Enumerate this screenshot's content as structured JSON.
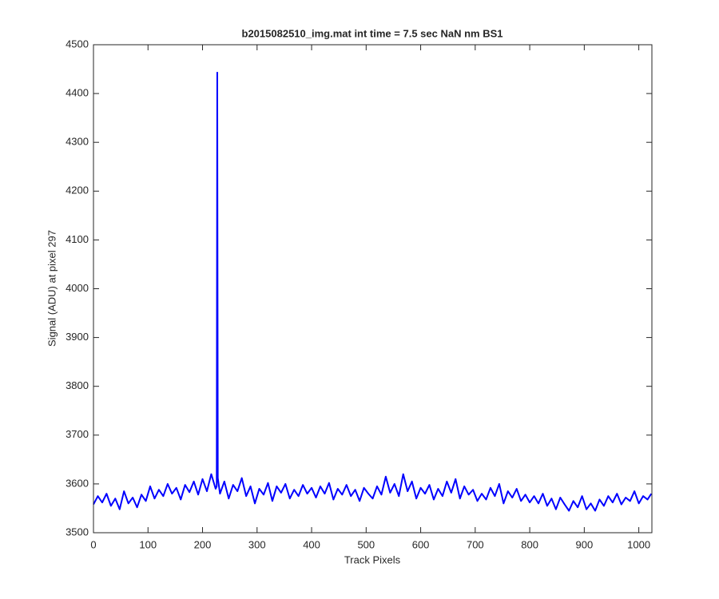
{
  "chart_data": {
    "type": "line",
    "title": "b2015082510_img.mat int time = 7.5 sec  NaN nm BS1",
    "x_label": "Track Pixels",
    "y_label": "Signal (ADU) at pixel 297",
    "xlim": [
      0,
      1024
    ],
    "ylim": [
      3500,
      4500
    ],
    "xticks": [
      0,
      100,
      200,
      300,
      400,
      500,
      600,
      700,
      800,
      900,
      1000
    ],
    "yticks": [
      3500,
      3600,
      3700,
      3800,
      3900,
      4000,
      4100,
      4200,
      4300,
      4400,
      4500
    ],
    "grid": false,
    "x": [
      0,
      8,
      16,
      24,
      32,
      40,
      48,
      56,
      64,
      72,
      80,
      88,
      96,
      104,
      112,
      120,
      128,
      136,
      144,
      152,
      160,
      168,
      176,
      184,
      192,
      200,
      208,
      216,
      224,
      226,
      227,
      228,
      232,
      240,
      248,
      256,
      264,
      272,
      280,
      288,
      296,
      304,
      312,
      320,
      328,
      336,
      344,
      352,
      360,
      368,
      376,
      384,
      392,
      400,
      408,
      416,
      424,
      432,
      440,
      448,
      456,
      464,
      472,
      480,
      488,
      496,
      504,
      512,
      520,
      528,
      536,
      544,
      552,
      560,
      568,
      576,
      584,
      592,
      600,
      608,
      616,
      624,
      632,
      640,
      648,
      656,
      664,
      672,
      680,
      688,
      696,
      704,
      712,
      720,
      728,
      736,
      744,
      752,
      760,
      768,
      776,
      784,
      792,
      800,
      808,
      816,
      824,
      832,
      840,
      848,
      856,
      864,
      872,
      880,
      888,
      896,
      904,
      912,
      920,
      928,
      936,
      944,
      952,
      960,
      968,
      976,
      984,
      992,
      1000,
      1008,
      1016,
      1023
    ],
    "series": [
      {
        "name": "signal",
        "color": "#0000ff",
        "values": [
          3558,
          3575,
          3562,
          3580,
          3555,
          3570,
          3548,
          3585,
          3560,
          3572,
          3552,
          3578,
          3565,
          3595,
          3570,
          3588,
          3575,
          3600,
          3580,
          3592,
          3568,
          3598,
          3583,
          3605,
          3578,
          3610,
          3585,
          3620,
          3590,
          3595,
          4443,
          3612,
          3580,
          3605,
          3570,
          3598,
          3585,
          3612,
          3575,
          3595,
          3560,
          3590,
          3578,
          3602,
          3565,
          3595,
          3582,
          3600,
          3570,
          3588,
          3575,
          3598,
          3580,
          3592,
          3572,
          3595,
          3580,
          3602,
          3568,
          3590,
          3578,
          3598,
          3575,
          3588,
          3565,
          3592,
          3580,
          3570,
          3595,
          3578,
          3615,
          3582,
          3600,
          3575,
          3620,
          3585,
          3605,
          3570,
          3592,
          3580,
          3598,
          3568,
          3590,
          3575,
          3605,
          3582,
          3610,
          3570,
          3595,
          3578,
          3588,
          3565,
          3580,
          3568,
          3592,
          3575,
          3600,
          3560,
          3585,
          3572,
          3590,
          3565,
          3578,
          3562,
          3575,
          3560,
          3580,
          3555,
          3570,
          3548,
          3572,
          3558,
          3545,
          3565,
          3552,
          3575,
          3548,
          3560,
          3545,
          3568,
          3555,
          3575,
          3562,
          3580,
          3558,
          3572,
          3565,
          3585,
          3560,
          3575,
          3568,
          3580
        ]
      }
    ]
  }
}
